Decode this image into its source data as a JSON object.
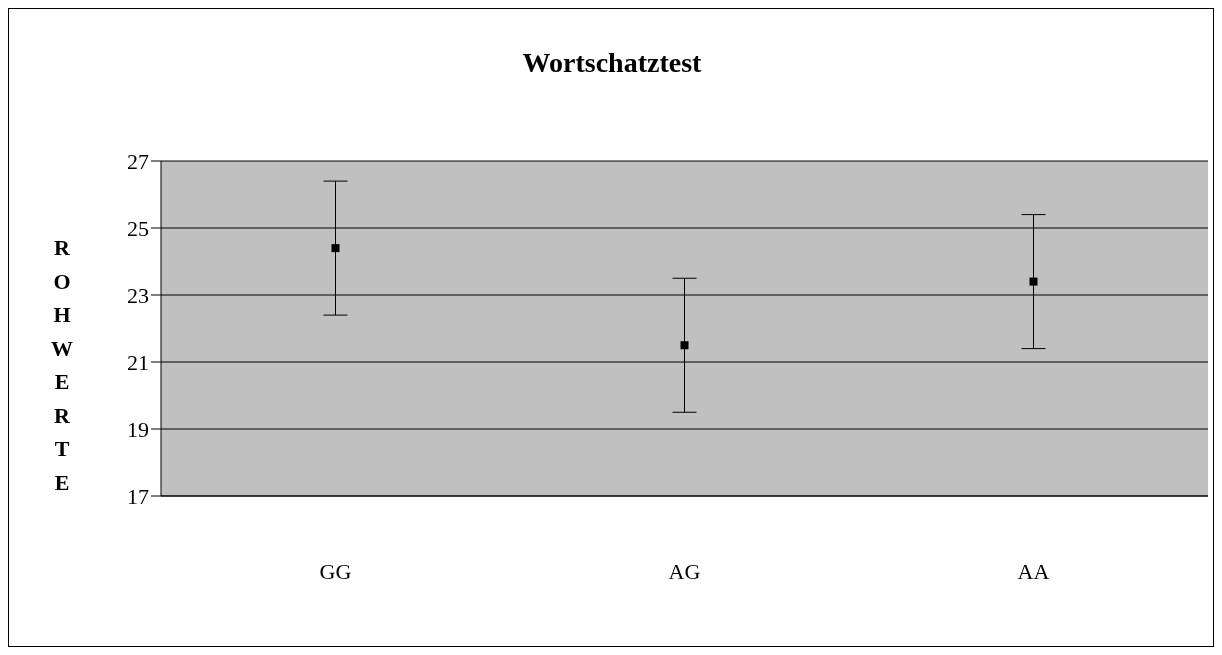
{
  "chart_data": {
    "type": "scatter",
    "title": "Wortschatztest",
    "ylabel": "ROHWERTE",
    "categories": [
      "GG",
      "AG",
      "AA"
    ],
    "series": [
      {
        "color": "#000000",
        "values": [
          24.4,
          21.5,
          23.4
        ],
        "errors": [
          2,
          2,
          2
        ]
      }
    ],
    "ylim": [
      17,
      27
    ],
    "yticks": [
      17,
      19,
      21,
      23,
      25,
      27
    ],
    "grid": "y",
    "marker": "square",
    "legend": false
  }
}
